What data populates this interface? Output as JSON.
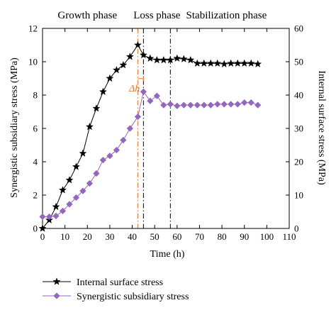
{
  "chart_data": {
    "type": "line",
    "xlabel": "Time (h)",
    "ylabel_left": "Synergistic subsidiary stress (MPa)",
    "ylabel_right": "Internal surface stress (MPa)",
    "xlim": [
      0,
      110
    ],
    "ylim_left": [
      0,
      12
    ],
    "ylim_right": [
      0,
      60
    ],
    "x_ticks": [
      0,
      10,
      20,
      30,
      40,
      50,
      60,
      70,
      80,
      90,
      100,
      110
    ],
    "y_ticks_left": [
      0,
      2,
      4,
      6,
      8,
      10,
      12
    ],
    "y_ticks_right": [
      0,
      10,
      20,
      30,
      40,
      50,
      60
    ],
    "grid": false,
    "legend_position": "bottom-left",
    "phase_labels": [
      {
        "text": "Growth phase",
        "x": 20
      },
      {
        "text": "Loss phase",
        "x": 51
      },
      {
        "text": "Stabilization phase",
        "x": 82
      }
    ],
    "vlines": [
      {
        "x": 42.5,
        "color": "#e8742b",
        "style": "dashdot"
      },
      {
        "x": 45,
        "color": "#000000",
        "style": "dashdot"
      },
      {
        "x": 57,
        "color": "#000000",
        "style": "dashdot"
      }
    ],
    "annotation": {
      "text": "Δh",
      "x": 43.5,
      "y": 8.9
    },
    "series": [
      {
        "name": "Internal surface stress",
        "axis": "right",
        "marker": "star",
        "color": "#000000",
        "x": [
          0,
          3,
          6,
          9,
          12,
          15,
          18,
          21,
          24,
          27,
          30,
          33,
          36,
          39,
          42.5,
          45,
          48,
          51,
          54,
          57,
          60,
          63,
          66,
          69,
          72,
          75,
          78,
          81,
          84,
          87,
          90,
          93,
          96
        ],
        "y": [
          0,
          2.5,
          6.5,
          11.5,
          14.5,
          18.5,
          22.5,
          30.5,
          36,
          41,
          45,
          47.5,
          49,
          51.5,
          55,
          52,
          51,
          50.5,
          50.5,
          50.5,
          51,
          50.8,
          50.5,
          49.5,
          49.5,
          49.5,
          49.5,
          49.3,
          49.5,
          49.5,
          49.5,
          49.5,
          49.3
        ]
      },
      {
        "name": "Synergistic subsidiary stress",
        "axis": "left",
        "marker": "diamond",
        "color": "#9467bd",
        "x": [
          0,
          3,
          6,
          9,
          12,
          15,
          18,
          21,
          24,
          27,
          30,
          33,
          36,
          39,
          42.5,
          45,
          48,
          51,
          54,
          57,
          60,
          63,
          66,
          69,
          72,
          75,
          78,
          81,
          84,
          87,
          90,
          93,
          96
        ],
        "y": [
          0.7,
          0.7,
          0.75,
          1.05,
          1.45,
          1.85,
          2.25,
          2.7,
          3.3,
          4.1,
          4.35,
          4.7,
          5.3,
          6.0,
          6.7,
          8.2,
          7.65,
          7.95,
          7.4,
          7.45,
          7.35,
          7.4,
          7.4,
          7.4,
          7.4,
          7.4,
          7.45,
          7.45,
          7.45,
          7.45,
          7.55,
          7.55,
          7.4
        ]
      }
    ]
  }
}
